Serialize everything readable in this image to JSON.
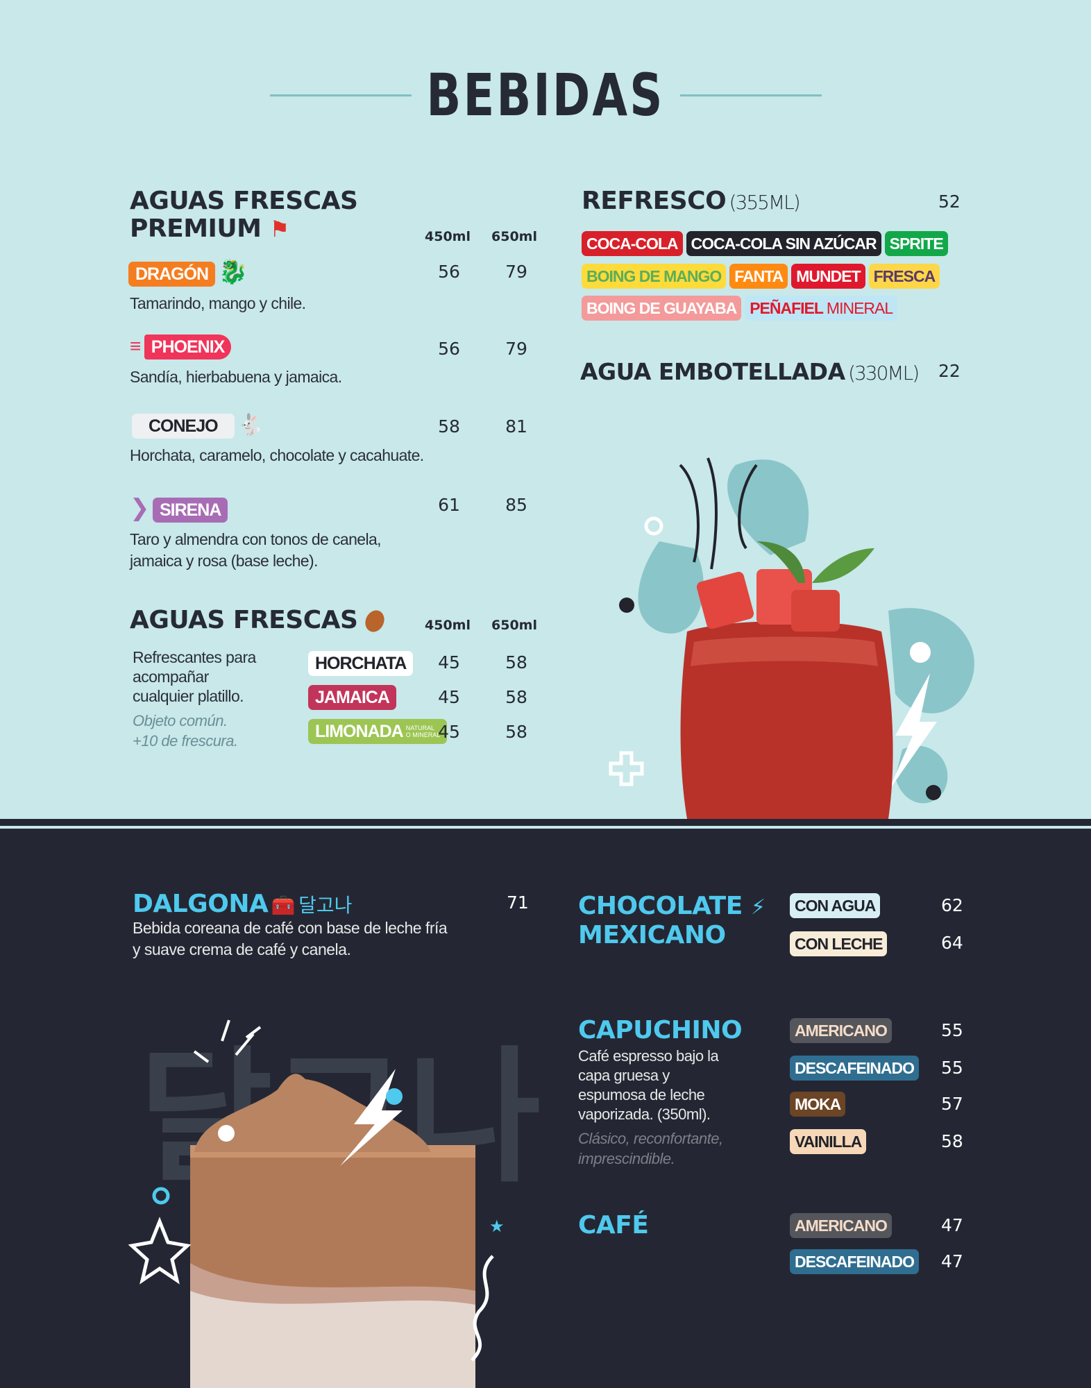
{
  "title": "BEBIDAS",
  "premium": {
    "heading_line1": "AGUAS FRESCAS",
    "heading_line2": "PREMIUM",
    "heading_icon": "flag-icon",
    "col_small": "450ml",
    "col_large": "650ml",
    "items": [
      {
        "name": "DRAGÓN",
        "desc": "Tamarindo, mango y chile.",
        "price_small": "56",
        "price_large": "79",
        "color": "#f47d20",
        "icon": "dragon-icon"
      },
      {
        "name": "PHOENIX",
        "desc": "Sandía, hierbabuena y jamaica.",
        "price_small": "56",
        "price_large": "79",
        "color": "#f0345a",
        "icon": "bird-icon"
      },
      {
        "name": "CONEJO",
        "desc": "Horchata, caramelo, chocolate y cacahuate.",
        "price_small": "58",
        "price_large": "81",
        "color": "#eef0f2",
        "icon": "rabbit-icon"
      },
      {
        "name": "SIRENA",
        "desc_line1": "Taro y almendra con tonos de canela,",
        "desc_line2": "jamaica y rosa (base leche).",
        "price_small": "61",
        "price_large": "85",
        "color": "#a86cb4",
        "icon": "mermaid-tail-icon"
      }
    ]
  },
  "aguas": {
    "heading": "AGUAS FRESCAS",
    "heading_icon": "seed-icon",
    "col_small": "450ml",
    "col_large": "650ml",
    "desc_line1": "Refrescantes para",
    "desc_line2": "acompañar",
    "desc_line3": "cualquier platillo.",
    "italic_line1": "Objeto común.",
    "italic_line2": "+10 de frescura.",
    "items": [
      {
        "name": "HORCHATA",
        "price_small": "45",
        "price_large": "58",
        "color": "#ffffff"
      },
      {
        "name": "JAMAICA",
        "price_small": "45",
        "price_large": "58",
        "color": "#c2345a"
      },
      {
        "name": "LIMONADA",
        "note_line1": "NATURAL",
        "note_line2": "O MINERAL",
        "price_small": "45",
        "price_large": "58",
        "color": "#9cc553"
      }
    ]
  },
  "refresco": {
    "heading": "REFRESCO",
    "size": "(355ML)",
    "price": "52",
    "brands": [
      {
        "name": "COCA-COLA",
        "bg": "#d8202a",
        "fg": "#ffffff"
      },
      {
        "name": "COCA-COLA SIN AZÚCAR",
        "bg": "#22232b",
        "fg": "#ffffff"
      },
      {
        "name": "SPRITE",
        "bg": "#12a84a",
        "fg": "#ffffff"
      },
      {
        "name": "BOING DE MANGO",
        "bg": "#fddb3a",
        "fg": "#5cae5a"
      },
      {
        "name": "FANTA",
        "bg": "#ff8a12",
        "fg": "#ffffff"
      },
      {
        "name": "MUNDET",
        "bg": "#e0182d",
        "fg": "#ffffff"
      },
      {
        "name": "FRESCA",
        "bg": "#fdd748",
        "fg": "#5a3a6a"
      },
      {
        "name": "BOING DE GUAYABA",
        "bg": "#f49a9a",
        "fg": "#ffffff"
      },
      {
        "name": "PEÑAFIEL",
        "name_suffix": "MINERAL",
        "bg": "#bfe6f5",
        "fg": "#e0182d"
      }
    ]
  },
  "agua": {
    "heading": "AGUA EMBOTELLADA",
    "size": "(330ML)",
    "price": "22"
  },
  "dalgona": {
    "heading": "DALGONA",
    "heading_icon": "treasure-chest-icon",
    "korean": "달고나",
    "price": "71",
    "desc_line1": "Bebida coreana de café con base de leche fría",
    "desc_line2": "y suave crema de café y canela.",
    "watermark": "달고나"
  },
  "chocolate": {
    "heading_line1": "CHOCOLATE",
    "heading_line2": "MEXICANO",
    "heading_icon": "lightning-icon",
    "options": [
      {
        "name": "CON AGUA",
        "price": "62",
        "bg": "#d7eef5",
        "fg": "#22232b"
      },
      {
        "name": "CON LECHE",
        "price": "64",
        "bg": "#f7ecd8",
        "fg": "#22232b"
      }
    ]
  },
  "capuchino": {
    "heading": "CAPUCHINO",
    "desc_line1": "Café espresso bajo la",
    "desc_line2": "capa gruesa y",
    "desc_line3": "espumosa de leche",
    "desc_line4": "vaporizada. (350ml).",
    "italic_line1": "Clásico, reconfortante,",
    "italic_line2": "imprescindible.",
    "options": [
      {
        "name": "AMERICANO",
        "price": "55",
        "bg": "#55565c",
        "fg": "#f5dcc8"
      },
      {
        "name": "DESCAFEINADO",
        "price": "55",
        "bg": "#2f6e90",
        "fg": "#ffffff"
      },
      {
        "name": "MOKA",
        "price": "57",
        "bg": "#6b4526",
        "fg": "#ffffff"
      },
      {
        "name": "VAINILLA",
        "price": "58",
        "bg": "#f6d8b8",
        "fg": "#22232b"
      }
    ]
  },
  "cafe": {
    "heading": "CAFÉ",
    "options": [
      {
        "name": "AMERICANO",
        "price": "47",
        "bg": "#55565c",
        "fg": "#f5dcc8"
      },
      {
        "name": "DESCAFEINADO",
        "price": "47",
        "bg": "#2f6e90",
        "fg": "#ffffff"
      }
    ]
  }
}
